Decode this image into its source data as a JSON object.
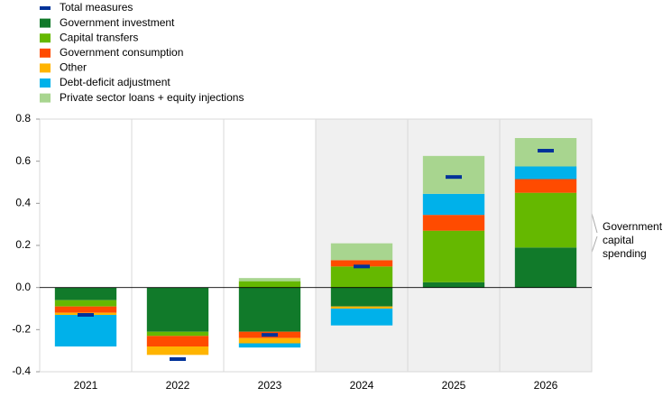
{
  "chart_data": {
    "type": "stacked-bar",
    "categories": [
      "2021",
      "2022",
      "2023",
      "2024",
      "2025",
      "2026"
    ],
    "series": [
      {
        "name": "Government investment",
        "color": "#117a2a",
        "values": [
          -0.06,
          -0.21,
          -0.21,
          -0.09,
          0.025,
          0.19
        ]
      },
      {
        "name": "Capital transfers",
        "color": "#65b800",
        "values": [
          -0.03,
          -0.02,
          0.03,
          0.1,
          0.245,
          0.26
        ]
      },
      {
        "name": "Government consumption",
        "color": "#ff4b00",
        "values": [
          -0.03,
          -0.05,
          -0.03,
          0.03,
          0.075,
          0.065
        ]
      },
      {
        "name": "Other",
        "color": "#ffb400",
        "values": [
          -0.01,
          -0.04,
          -0.025,
          -0.01,
          0,
          0
        ]
      },
      {
        "name": "Debt-deficit adjustment",
        "color": "#00b1ea",
        "values": [
          -0.15,
          0,
          -0.02,
          -0.08,
          0.1,
          0.06
        ]
      },
      {
        "name": "Private sector loans + equity injections",
        "color": "#a8d58f",
        "values": [
          0,
          0,
          0.015,
          0.08,
          0.18,
          0.135
        ]
      }
    ],
    "total": {
      "name": "Total measures",
      "color": "#003299",
      "values": [
        -0.13,
        -0.34,
        -0.225,
        0.1,
        0.525,
        0.65
      ]
    },
    "ylim": [
      -0.4,
      0.8
    ],
    "yticks": [
      -0.4,
      -0.2,
      {
        "value": 0,
        "label": "0.0"
      },
      0.2,
      0.4,
      0.6,
      0.8
    ],
    "shade_from_index": 3,
    "annotation": "Government capital spending"
  }
}
